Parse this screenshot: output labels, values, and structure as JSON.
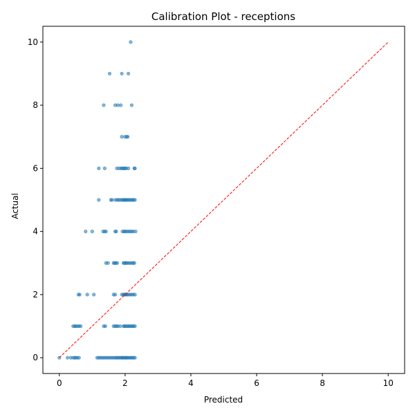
{
  "chart_data": {
    "type": "scatter",
    "title": "Calibration Plot - receptions",
    "xlabel": "Predicted",
    "ylabel": "Actual",
    "xlim": [
      -0.5,
      10.5
    ],
    "ylim": [
      -0.5,
      10.5
    ],
    "x_ticks": [
      0,
      2,
      4,
      6,
      8,
      10
    ],
    "y_ticks": [
      0,
      2,
      4,
      6,
      8,
      10
    ],
    "grid": false,
    "point_color": "#1f77b4",
    "reference_line": {
      "points": [
        [
          0,
          0
        ],
        [
          10,
          10
        ]
      ],
      "color": "#ff0000",
      "style": "dashed"
    },
    "series": [
      {
        "points": [
          [
            2.17,
            10
          ],
          [
            1.53,
            9
          ],
          [
            1.9,
            9
          ],
          [
            2.1,
            9
          ],
          [
            1.35,
            8
          ],
          [
            1.7,
            8
          ],
          [
            1.78,
            8
          ],
          [
            1.87,
            8
          ],
          [
            2.2,
            8
          ],
          [
            1.9,
            7
          ],
          [
            2.0,
            7
          ],
          [
            2.05,
            7
          ],
          [
            2.08,
            7
          ],
          [
            1.2,
            6
          ],
          [
            1.38,
            6
          ],
          [
            1.75,
            6
          ],
          [
            1.82,
            6
          ],
          [
            1.88,
            6
          ],
          [
            1.92,
            6
          ],
          [
            1.96,
            6
          ],
          [
            2.0,
            6
          ],
          [
            2.03,
            6
          ],
          [
            2.1,
            6
          ],
          [
            2.28,
            6
          ],
          [
            2.3,
            6
          ],
          [
            1.2,
            5
          ],
          [
            1.57,
            5
          ],
          [
            1.6,
            5
          ],
          [
            1.7,
            5
          ],
          [
            1.76,
            5
          ],
          [
            1.8,
            5
          ],
          [
            1.85,
            5
          ],
          [
            1.9,
            5
          ],
          [
            1.94,
            5
          ],
          [
            1.97,
            5
          ],
          [
            2.0,
            5
          ],
          [
            2.03,
            5
          ],
          [
            2.06,
            5
          ],
          [
            2.1,
            5
          ],
          [
            2.14,
            5
          ],
          [
            2.18,
            5
          ],
          [
            2.22,
            5
          ],
          [
            2.26,
            5
          ],
          [
            2.3,
            5
          ],
          [
            0.8,
            4
          ],
          [
            1.0,
            4
          ],
          [
            1.33,
            4
          ],
          [
            1.38,
            4
          ],
          [
            1.42,
            4
          ],
          [
            1.7,
            4
          ],
          [
            1.73,
            4
          ],
          [
            1.92,
            4
          ],
          [
            1.97,
            4
          ],
          [
            2.0,
            4
          ],
          [
            2.05,
            4
          ],
          [
            2.1,
            4
          ],
          [
            2.15,
            4
          ],
          [
            2.2,
            4
          ],
          [
            2.25,
            4
          ],
          [
            2.32,
            4
          ],
          [
            1.42,
            3
          ],
          [
            1.48,
            3
          ],
          [
            1.65,
            3
          ],
          [
            1.68,
            3
          ],
          [
            1.72,
            3
          ],
          [
            1.76,
            3
          ],
          [
            1.95,
            3
          ],
          [
            1.98,
            3
          ],
          [
            2.02,
            3
          ],
          [
            2.05,
            3
          ],
          [
            2.1,
            3
          ],
          [
            2.15,
            3
          ],
          [
            2.2,
            3
          ],
          [
            2.25,
            3
          ],
          [
            2.28,
            3
          ],
          [
            0.58,
            2
          ],
          [
            0.62,
            2
          ],
          [
            0.85,
            2
          ],
          [
            1.05,
            2
          ],
          [
            1.65,
            2
          ],
          [
            1.7,
            2
          ],
          [
            1.9,
            2
          ],
          [
            1.95,
            2
          ],
          [
            1.98,
            2
          ],
          [
            2.0,
            2
          ],
          [
            2.03,
            2
          ],
          [
            2.06,
            2
          ],
          [
            2.1,
            2
          ],
          [
            2.15,
            2
          ],
          [
            2.2,
            2
          ],
          [
            2.25,
            2
          ],
          [
            2.3,
            2
          ],
          [
            0.42,
            1
          ],
          [
            0.47,
            1
          ],
          [
            0.5,
            1
          ],
          [
            0.55,
            1
          ],
          [
            0.6,
            1
          ],
          [
            0.65,
            1
          ],
          [
            1.35,
            1
          ],
          [
            1.4,
            1
          ],
          [
            1.65,
            1
          ],
          [
            1.7,
            1
          ],
          [
            1.74,
            1
          ],
          [
            1.78,
            1
          ],
          [
            1.85,
            1
          ],
          [
            1.95,
            1
          ],
          [
            1.98,
            1
          ],
          [
            2.02,
            1
          ],
          [
            2.06,
            1
          ],
          [
            2.1,
            1
          ],
          [
            2.14,
            1
          ],
          [
            2.18,
            1
          ],
          [
            2.22,
            1
          ],
          [
            2.26,
            1
          ],
          [
            2.3,
            1
          ],
          [
            0.0,
            0
          ],
          [
            0.25,
            0
          ],
          [
            0.35,
            0
          ],
          [
            0.42,
            0
          ],
          [
            0.47,
            0
          ],
          [
            0.5,
            0
          ],
          [
            0.55,
            0
          ],
          [
            0.6,
            0
          ],
          [
            1.15,
            0
          ],
          [
            1.2,
            0
          ],
          [
            1.25,
            0
          ],
          [
            1.3,
            0
          ],
          [
            1.35,
            0
          ],
          [
            1.4,
            0
          ],
          [
            1.45,
            0
          ],
          [
            1.5,
            0
          ],
          [
            1.55,
            0
          ],
          [
            1.6,
            0
          ],
          [
            1.65,
            0
          ],
          [
            1.7,
            0
          ],
          [
            1.74,
            0
          ],
          [
            1.78,
            0
          ],
          [
            1.82,
            0
          ],
          [
            1.86,
            0
          ],
          [
            1.9,
            0
          ],
          [
            1.93,
            0
          ],
          [
            1.96,
            0
          ],
          [
            2.0,
            0
          ],
          [
            2.03,
            0
          ],
          [
            2.06,
            0
          ],
          [
            2.1,
            0
          ],
          [
            2.14,
            0
          ],
          [
            2.18,
            0
          ],
          [
            2.22,
            0
          ],
          [
            2.26,
            0
          ],
          [
            2.3,
            0
          ]
        ]
      }
    ]
  }
}
